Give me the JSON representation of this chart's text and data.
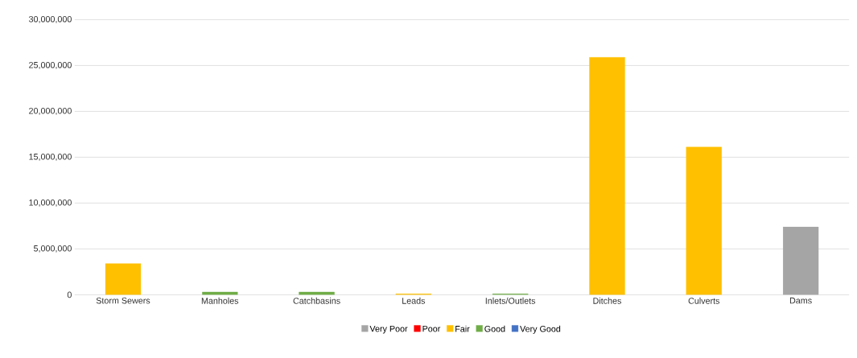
{
  "chart_data": {
    "type": "bar",
    "categories": [
      "Storm Sewers",
      "Manholes",
      "Catchbasins",
      "Leads",
      "Inlets/Outlets",
      "Ditches",
      "Culverts",
      "Dams"
    ],
    "series": [
      {
        "name": "Very Poor",
        "color": "#a5a5a5",
        "values": [
          null,
          null,
          null,
          null,
          null,
          null,
          null,
          7400000
        ]
      },
      {
        "name": "Poor",
        "color": "#ff0000",
        "values": [
          null,
          null,
          null,
          null,
          null,
          null,
          null,
          null
        ]
      },
      {
        "name": "Fair",
        "color": "#ffc000",
        "values": [
          3400000,
          null,
          null,
          100000,
          null,
          25900000,
          16100000,
          null
        ]
      },
      {
        "name": "Good",
        "color": "#70ad47",
        "values": [
          null,
          300000,
          300000,
          null,
          100000,
          null,
          null,
          null
        ]
      },
      {
        "name": "Very Good",
        "color": "#4472c4",
        "values": [
          null,
          null,
          null,
          null,
          null,
          null,
          null,
          null
        ]
      }
    ],
    "ylim": [
      0,
      30000000
    ],
    "yticks": [
      {
        "value": 0,
        "label": "0"
      },
      {
        "value": 5000000,
        "label": "5,000,000"
      },
      {
        "value": 10000000,
        "label": "10,000,000"
      },
      {
        "value": 15000000,
        "label": "15,000,000"
      },
      {
        "value": 20000000,
        "label": "20,000,000"
      },
      {
        "value": 25000000,
        "label": "25,000,000"
      },
      {
        "value": 30000000,
        "label": "30,000,000"
      }
    ],
    "grid": "y",
    "legend": "bottom"
  }
}
